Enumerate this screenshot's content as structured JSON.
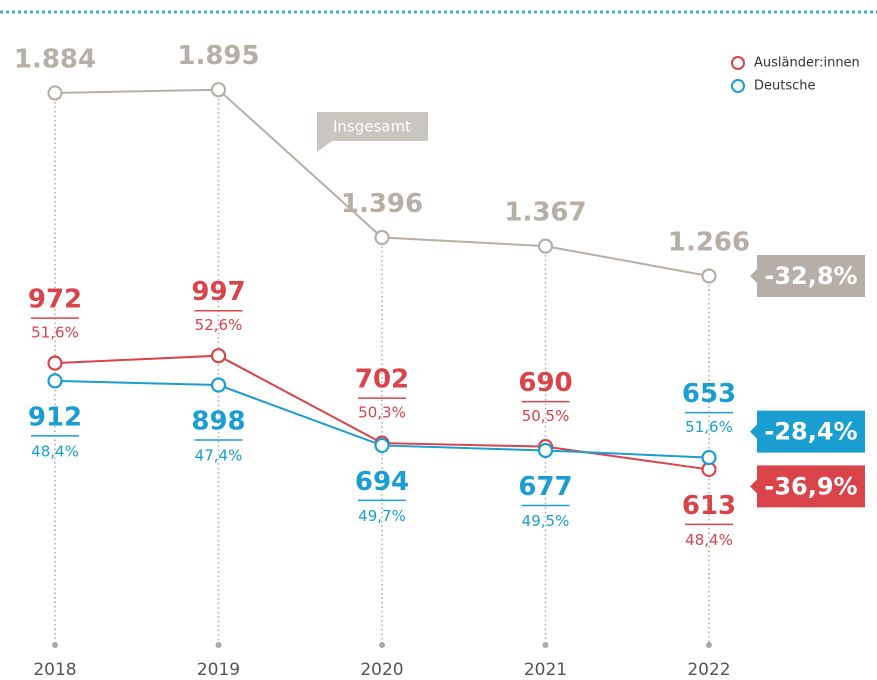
{
  "chart_data": {
    "type": "line",
    "categories": [
      "2018",
      "2019",
      "2020",
      "2021",
      "2022"
    ],
    "ylim": [
      0,
      2000
    ],
    "series": [
      {
        "name": "Insgesamt",
        "color": "#b5afa7",
        "values": [
          1884,
          1895,
          1396,
          1367,
          1266
        ],
        "value_labels": [
          "1.884",
          "1.895",
          "1.396",
          "1.367",
          "1.266"
        ],
        "change_label": "-32,8%"
      },
      {
        "name": "Ausländer:innen",
        "color": "#d9434a",
        "values": [
          972,
          997,
          702,
          690,
          613
        ],
        "value_labels": [
          "972",
          "997",
          "702",
          "690",
          "613"
        ],
        "share_labels": [
          "51,6%",
          "52,6%",
          "50,3%",
          "50,5%",
          "48,4%"
        ],
        "change_label": "-36,9%"
      },
      {
        "name": "Deutsche",
        "color": "#1a9ed1",
        "values": [
          912,
          898,
          694,
          677,
          653
        ],
        "value_labels": [
          "912",
          "898",
          "694",
          "677",
          "653"
        ],
        "share_labels": [
          "48,4%",
          "47,4%",
          "49,7%",
          "49,5%",
          "51,6%"
        ],
        "change_label": "-28,4%"
      }
    ]
  }
}
